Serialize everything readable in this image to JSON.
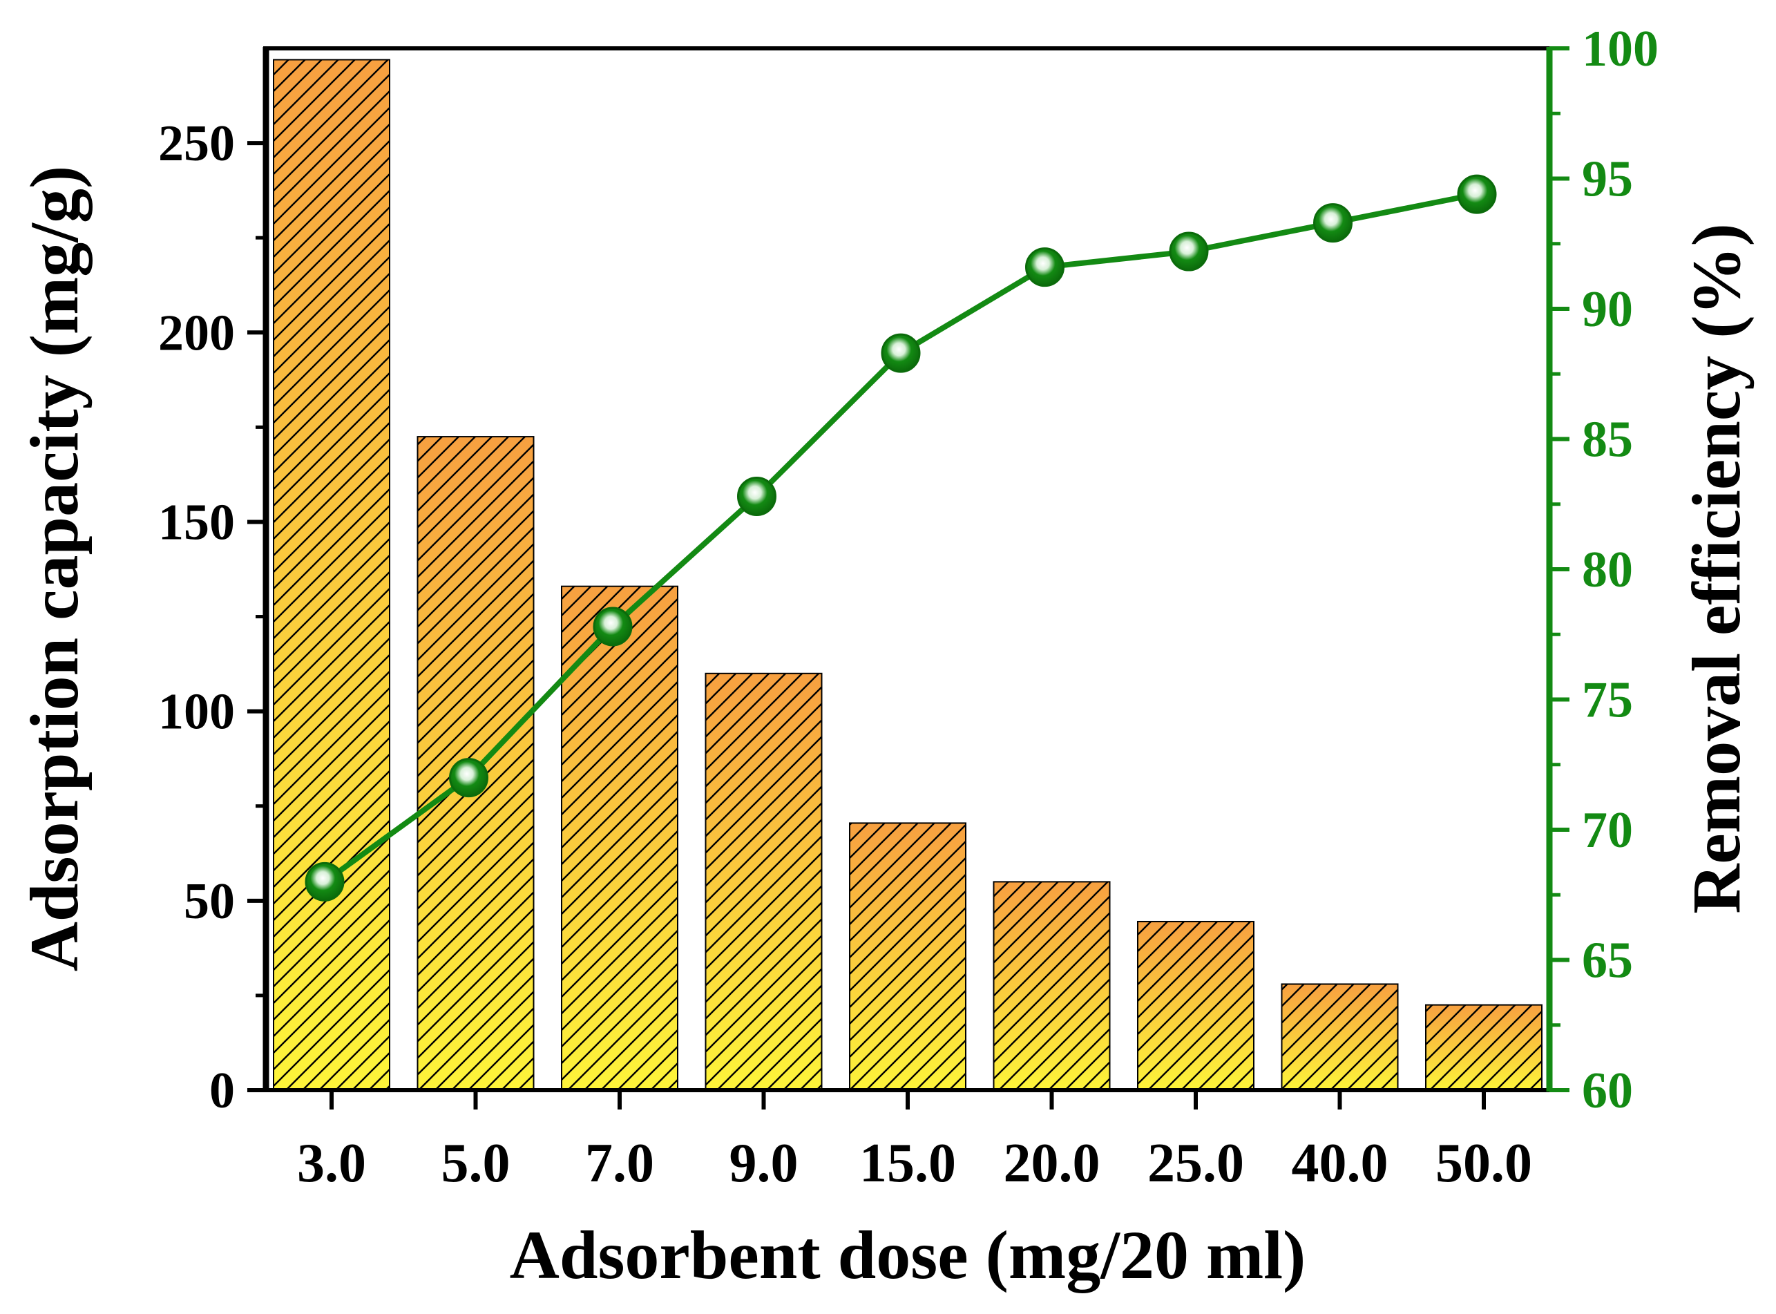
{
  "chart_data": {
    "type": "bar+line",
    "title": "",
    "xlabel": "Adsorbent dose (mg/20 ml)",
    "ylabel": "Adsorption capacity (mg/g)",
    "y2label": "Removal efficiency (%)",
    "categories": [
      "3.0",
      "5.0",
      "7.0",
      "9.0",
      "15.0",
      "20.0",
      "25.0",
      "40.0",
      "50.0"
    ],
    "ylim": [
      0,
      275
    ],
    "y2lim": [
      60,
      100
    ],
    "yticks": [
      0,
      50,
      100,
      150,
      200,
      250
    ],
    "y2ticks": [
      60,
      65,
      70,
      75,
      80,
      85,
      90,
      95,
      100
    ],
    "series": [
      {
        "name": "Adsorption capacity",
        "type": "bar",
        "axis": "left",
        "values": [
          272,
          172.5,
          133,
          110,
          70.5,
          55,
          44.5,
          28,
          22.5
        ]
      },
      {
        "name": "Removal efficiency",
        "type": "line",
        "axis": "right",
        "values": [
          68,
          72,
          77.8,
          82.8,
          88.3,
          91.6,
          92.2,
          93.3,
          94.4
        ]
      }
    ],
    "grid": false,
    "legend": "none"
  },
  "colors": {
    "bar_top": "#f7a040",
    "bar_bottom": "#fdf43a",
    "bar_hatch": "#000000",
    "line": "#138a13",
    "right_axis": "#138a13",
    "left_axis": "#000000"
  }
}
